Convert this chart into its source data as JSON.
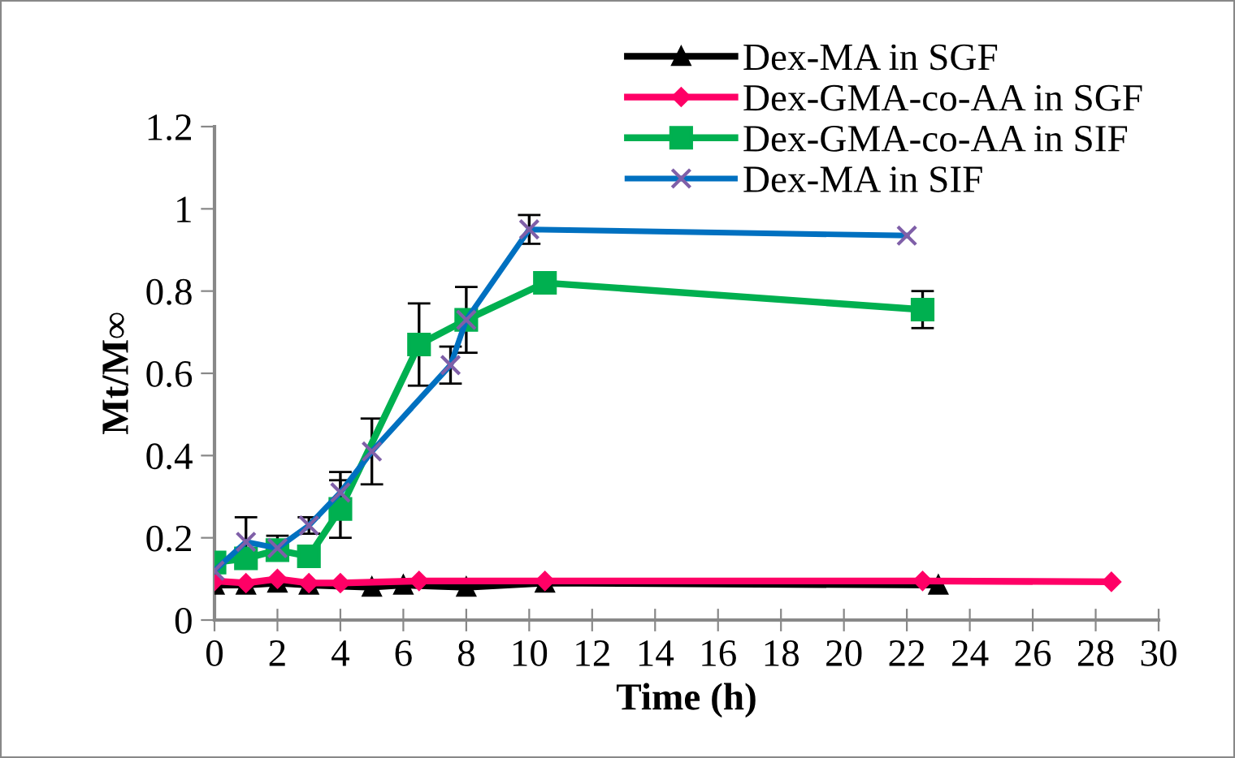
{
  "chart_data": {
    "type": "line",
    "xlabel": "Time (h)",
    "ylabel": "Mt/M∞",
    "xlim": [
      0,
      30
    ],
    "xticks": [
      0,
      2,
      4,
      6,
      8,
      10,
      12,
      14,
      16,
      18,
      20,
      22,
      24,
      26,
      28,
      30
    ],
    "ylim": [
      0,
      1.2
    ],
    "yticks": [
      0,
      0.2,
      0.4,
      0.6,
      0.8,
      1,
      1.2
    ],
    "grid": false,
    "legend": "top right",
    "line_style": "solid",
    "series": [
      {
        "name": "Dex-MA in SGF",
        "color": "#000000",
        "marker": "triangle",
        "x": [
          0,
          1,
          2,
          3,
          5,
          6,
          8,
          10.5,
          23
        ],
        "values": [
          0.085,
          0.085,
          0.09,
          0.085,
          0.08,
          0.085,
          0.08,
          0.09,
          0.085
        ]
      },
      {
        "name": "Dex-GMA-co-AA in SGF",
        "color": "#ff0066",
        "marker": "diamond",
        "x": [
          0,
          1,
          2,
          3,
          4,
          6.5,
          10.5,
          22.5,
          28.5
        ],
        "values": [
          0.095,
          0.09,
          0.1,
          0.09,
          0.09,
          0.095,
          0.095,
          0.095,
          0.093
        ]
      },
      {
        "name": "Dex-GMA-co-AA in SIF",
        "color": "#00b050",
        "marker": "square",
        "x": [
          0,
          1,
          2,
          3,
          4,
          6.5,
          8,
          10.5,
          22.5
        ],
        "values": [
          0.14,
          0.15,
          0.17,
          0.155,
          0.27,
          0.67,
          0.73,
          0.82,
          0.755
        ],
        "errors": [
          null,
          null,
          null,
          null,
          0.07,
          0.1,
          null,
          null,
          0.045
        ]
      },
      {
        "name": "Dex-MA in SIF",
        "color": "#0070c0",
        "marker": "cross",
        "x": [
          0,
          1,
          2,
          3,
          4,
          5,
          7.5,
          8,
          10,
          22
        ],
        "values": [
          0.12,
          0.19,
          0.175,
          0.23,
          0.31,
          0.41,
          0.62,
          0.73,
          0.95,
          0.935
        ],
        "errors": [
          null,
          0.06,
          0.03,
          0.02,
          0.05,
          0.08,
          0.045,
          0.08,
          0.035,
          null
        ]
      }
    ]
  }
}
